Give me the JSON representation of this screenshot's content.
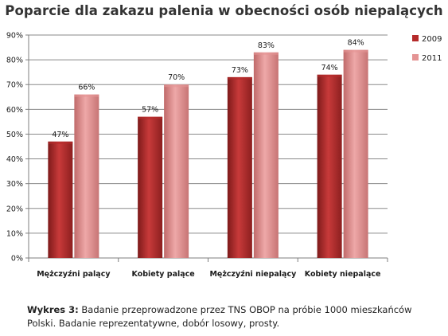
{
  "chart_data": {
    "type": "bar",
    "title": "Poparcie dla zakazu palenia w obecności osób niepalących",
    "categories": [
      "Mężczyźni palący",
      "Kobiety palące",
      "Mężczyźni niepalący",
      "Kobiety niepalące"
    ],
    "series": [
      {
        "name": "2009",
        "values": [
          47,
          57,
          73,
          74
        ],
        "labels": [
          "47%",
          "57%",
          "73%",
          "74%"
        ],
        "color": "#b52b2b"
      },
      {
        "name": "2011",
        "values": [
          66,
          70,
          83,
          84
        ],
        "labels": [
          "66%",
          "70%",
          "83%",
          "84%"
        ],
        "color": "#e49494"
      }
    ],
    "ylim": [
      0,
      90
    ],
    "y_ticks": [
      "0%",
      "10%",
      "20%",
      "30%",
      "40%",
      "50%",
      "60%",
      "70%",
      "80%",
      "90%"
    ],
    "xlabel": "",
    "ylabel": "",
    "grid": true,
    "legend_position": "right"
  },
  "caption": {
    "label": "Wykres 3:",
    "text": "Badanie przeprowadzone przez TNS OBOP na próbie 1000 mieszkańców Polski. Badanie reprezentatywne, dobór losowy, prosty."
  }
}
